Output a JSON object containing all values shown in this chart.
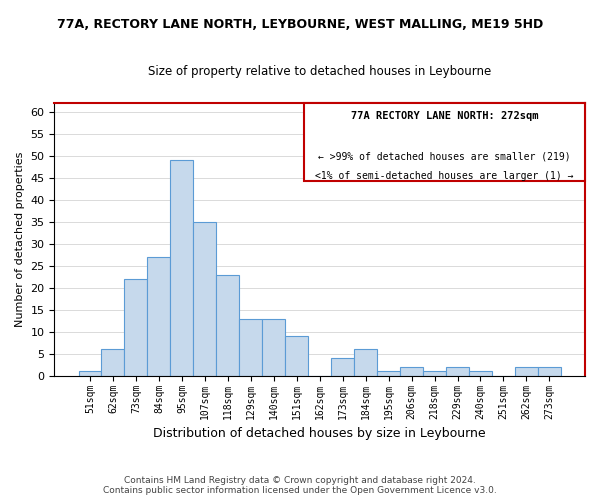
{
  "title": "77A, RECTORY LANE NORTH, LEYBOURNE, WEST MALLING, ME19 5HD",
  "subtitle": "Size of property relative to detached houses in Leybourne",
  "xlabel": "Distribution of detached houses by size in Leybourne",
  "ylabel": "Number of detached properties",
  "bar_labels": [
    "51sqm",
    "62sqm",
    "73sqm",
    "84sqm",
    "95sqm",
    "107sqm",
    "118sqm",
    "129sqm",
    "140sqm",
    "151sqm",
    "162sqm",
    "173sqm",
    "184sqm",
    "195sqm",
    "206sqm",
    "218sqm",
    "229sqm",
    "240sqm",
    "251sqm",
    "262sqm",
    "273sqm"
  ],
  "bar_heights": [
    1,
    6,
    22,
    27,
    49,
    35,
    23,
    13,
    13,
    9,
    0,
    4,
    6,
    1,
    2,
    1,
    2,
    1,
    0,
    2,
    2
  ],
  "bar_color": "#c6d9ec",
  "bar_edge_color": "#5b9bd5",
  "highlight_box_color": "#c00000",
  "ylim": [
    0,
    62
  ],
  "yticks": [
    0,
    5,
    10,
    15,
    20,
    25,
    30,
    35,
    40,
    45,
    50,
    55,
    60
  ],
  "annotation_title": "77A RECTORY LANE NORTH: 272sqm",
  "annotation_line1": "← >99% of detached houses are smaller (219)",
  "annotation_line2": "<1% of semi-detached houses are larger (1) →",
  "footer_line1": "Contains HM Land Registry data © Crown copyright and database right 2024.",
  "footer_line2": "Contains public sector information licensed under the Open Government Licence v3.0.",
  "bg_color": "#ffffff",
  "grid_color": "#cccccc"
}
